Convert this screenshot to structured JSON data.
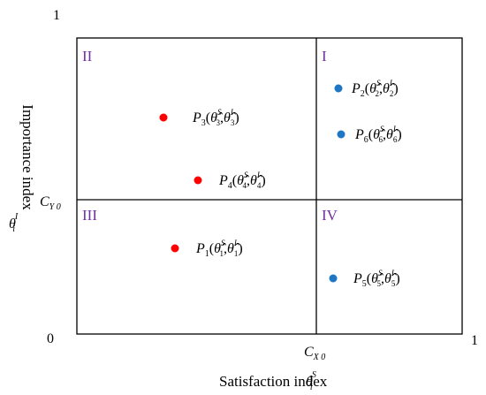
{
  "axes": {
    "origin_label": "0",
    "x_max_label": "1",
    "y_max_label": "1",
    "x_title": "Satisfaction index",
    "x_symbol": "θ",
    "x_symbol_sup": "S",
    "x_symbol_sub": "i",
    "y_title": "Importance index",
    "y_symbol": "θ",
    "y_symbol_sup": "I",
    "y_symbol_sub": "i",
    "x_threshold": "C",
    "x_threshold_sub": "X 0",
    "y_threshold": "C",
    "y_threshold_sub": "Y 0"
  },
  "quadrants": [
    "I",
    "II",
    "III",
    "IV"
  ],
  "colors": {
    "red_points": "#ff0000",
    "blue_points": "#1f77c4",
    "quadrant_labels": "#7030a0"
  },
  "points": [
    {
      "name": "P",
      "index": "1",
      "color": "red"
    },
    {
      "name": "P",
      "index": "2",
      "color": "blue"
    },
    {
      "name": "P",
      "index": "3",
      "color": "red"
    },
    {
      "name": "P",
      "index": "4",
      "color": "red"
    },
    {
      "name": "P",
      "index": "5",
      "color": "blue"
    },
    {
      "name": "P",
      "index": "6",
      "color": "blue"
    }
  ]
}
